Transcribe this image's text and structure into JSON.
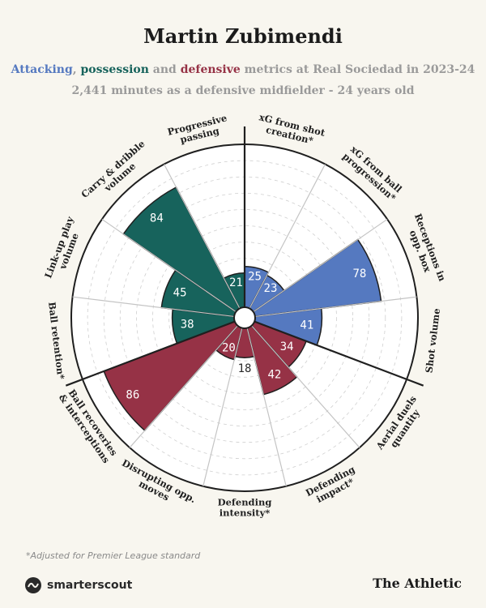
{
  "title": "Martin Zubimendi",
  "subtitle": {
    "attacking": "Attacking",
    "sep1": ", ",
    "possession": "possession",
    "sep2": " and ",
    "defensive": "defensive",
    "rest": " metrics at Real Sociedad in 2023-24"
  },
  "subtitle2": "2,441 minutes as a defensive midfielder - 24 years old",
  "footnote": "*Adjusted for Premier League standard",
  "brand_left": "smarterscout",
  "brand_left_icon": "smarterscout-logo-icon",
  "brand_right": "The Athletic",
  "colors": {
    "attacking": "#5579c0",
    "possession": "#17635c",
    "defensive": "#963246",
    "background": "#f8f6ef"
  },
  "chart_data": {
    "type": "radar-bar",
    "scale": [
      0,
      100
    ],
    "categories_clockwise_from_top": [
      {
        "label": "xG from shot creation*",
        "value": 25,
        "group": "attacking"
      },
      {
        "label": "xG from ball progression*",
        "value": 23,
        "group": "attacking"
      },
      {
        "label": "Receptions in opp. box",
        "value": 78,
        "group": "attacking"
      },
      {
        "label": "Shot volume",
        "value": 41,
        "group": "attacking"
      },
      {
        "label": "Aerial duels quantity",
        "value": 34,
        "group": "defensive"
      },
      {
        "label": "Defending impact*",
        "value": 42,
        "group": "defensive"
      },
      {
        "label": "Defending intensity*",
        "value": 18,
        "group": "defensive"
      },
      {
        "label": "Disrupting opp. moves",
        "value": 20,
        "group": "defensive"
      },
      {
        "label": "Ball recoveries & interceptions",
        "value": 86,
        "group": "defensive"
      },
      {
        "label": "Ball retention*",
        "value": 38,
        "group": "possession"
      },
      {
        "label": "Link-up play volume",
        "value": 45,
        "group": "possession"
      },
      {
        "label": "Carry & dribble volume",
        "value": 84,
        "group": "possession"
      },
      {
        "label": "Progressive passing",
        "value": 21,
        "group": "possession"
      }
    ]
  }
}
